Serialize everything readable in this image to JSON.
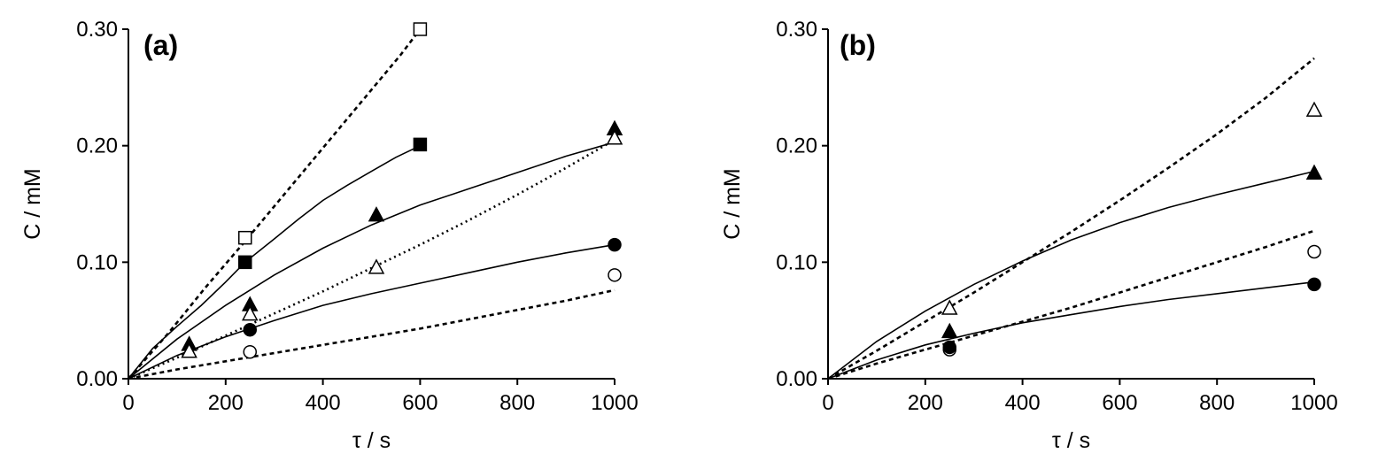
{
  "chart_data": [
    {
      "type": "scatter",
      "panel": "(a)",
      "xlabel": "τ / s",
      "ylabel": "C / mM",
      "xlim": [
        0,
        1000
      ],
      "ylim": [
        0,
        0.3
      ],
      "xticks": [
        "0",
        "200",
        "400",
        "600",
        "800",
        "1000"
      ],
      "yticks": [
        "0.00",
        "0.10",
        "0.20",
        "0.30"
      ],
      "grid": false,
      "series": [
        {
          "marker": "square-open",
          "x": [
            240,
            600
          ],
          "y": [
            0.121,
            0.3
          ]
        },
        {
          "marker": "square-filled",
          "x": [
            240,
            600
          ],
          "y": [
            0.1,
            0.201
          ]
        },
        {
          "marker": "triangle-filled",
          "x": [
            125,
            250,
            510,
            1000
          ],
          "y": [
            0.029,
            0.063,
            0.14,
            0.214
          ]
        },
        {
          "marker": "triangle-open",
          "x": [
            125,
            250,
            510,
            1000
          ],
          "y": [
            0.023,
            0.055,
            0.095,
            0.206
          ]
        },
        {
          "marker": "circle-filled",
          "x": [
            250,
            1000
          ],
          "y": [
            0.042,
            0.115
          ]
        },
        {
          "marker": "circle-open",
          "x": [
            250,
            1000
          ],
          "y": [
            0.023,
            0.089
          ]
        }
      ],
      "curves": [
        {
          "style": "dashed",
          "x": [
            0,
            80,
            160,
            240,
            320,
            400,
            480,
            560,
            600
          ],
          "y": [
            0,
            0.038,
            0.079,
            0.118,
            0.158,
            0.198,
            0.238,
            0.278,
            0.3
          ]
        },
        {
          "style": "solid",
          "x": [
            0,
            50,
            100,
            150,
            200,
            240,
            300,
            350,
            400,
            450,
            500,
            550,
            600
          ],
          "y": [
            0,
            0.026,
            0.045,
            0.063,
            0.083,
            0.1,
            0.12,
            0.137,
            0.153,
            0.166,
            0.178,
            0.19,
            0.2
          ]
        },
        {
          "style": "solid",
          "x": [
            0,
            100,
            200,
            300,
            400,
            500,
            600,
            700,
            800,
            900,
            1000
          ],
          "y": [
            0,
            0.034,
            0.063,
            0.089,
            0.112,
            0.132,
            0.149,
            0.163,
            0.177,
            0.191,
            0.203
          ]
        },
        {
          "style": "dotted",
          "x": [
            0,
            100,
            200,
            300,
            400,
            500,
            600,
            700,
            800,
            900,
            1000
          ],
          "y": [
            0,
            0.018,
            0.037,
            0.056,
            0.075,
            0.095,
            0.115,
            0.136,
            0.158,
            0.181,
            0.205
          ]
        },
        {
          "style": "solid",
          "x": [
            0,
            100,
            200,
            300,
            400,
            500,
            600,
            700,
            800,
            900,
            1000
          ],
          "y": [
            0,
            0.02,
            0.036,
            0.05,
            0.063,
            0.073,
            0.082,
            0.091,
            0.1,
            0.108,
            0.115
          ]
        },
        {
          "style": "dashed",
          "x": [
            0,
            100,
            200,
            300,
            400,
            500,
            600,
            700,
            800,
            900,
            1000
          ],
          "y": [
            0,
            0.008,
            0.015,
            0.022,
            0.029,
            0.036,
            0.043,
            0.051,
            0.059,
            0.067,
            0.076
          ]
        }
      ]
    },
    {
      "type": "scatter",
      "panel": "(b)",
      "xlabel": "τ / s",
      "ylabel": "C / mM",
      "xlim": [
        0,
        1000
      ],
      "ylim": [
        0,
        0.3
      ],
      "xticks": [
        "0",
        "200",
        "400",
        "600",
        "800",
        "1000"
      ],
      "yticks": [
        "0.00",
        "0.10",
        "0.20",
        "0.30"
      ],
      "grid": false,
      "series": [
        {
          "marker": "triangle-open",
          "x": [
            250,
            1000
          ],
          "y": [
            0.06,
            0.23
          ]
        },
        {
          "marker": "triangle-filled",
          "x": [
            250,
            1000
          ],
          "y": [
            0.04,
            0.176
          ]
        },
        {
          "marker": "circle-open",
          "x": [
            250,
            1000
          ],
          "y": [
            0.025,
            0.109
          ]
        },
        {
          "marker": "circle-filled",
          "x": [
            250,
            1000
          ],
          "y": [
            0.027,
            0.081
          ]
        }
      ],
      "curves": [
        {
          "style": "dashed",
          "x": [
            0,
            100,
            200,
            300,
            400,
            500,
            600,
            700,
            800,
            900,
            1000
          ],
          "y": [
            0,
            0.024,
            0.049,
            0.074,
            0.1,
            0.126,
            0.153,
            0.181,
            0.21,
            0.241,
            0.275
          ]
        },
        {
          "style": "solid",
          "x": [
            0,
            100,
            200,
            300,
            400,
            500,
            600,
            700,
            800,
            900,
            1000
          ],
          "y": [
            0,
            0.032,
            0.058,
            0.081,
            0.101,
            0.119,
            0.134,
            0.147,
            0.158,
            0.168,
            0.178
          ]
        },
        {
          "style": "dashed",
          "x": [
            0,
            100,
            200,
            300,
            400,
            500,
            600,
            700,
            800,
            900,
            1000
          ],
          "y": [
            0,
            0.013,
            0.025,
            0.037,
            0.049,
            0.061,
            0.074,
            0.087,
            0.1,
            0.113,
            0.127
          ]
        },
        {
          "style": "solid",
          "x": [
            0,
            100,
            200,
            300,
            400,
            500,
            600,
            700,
            800,
            900,
            1000
          ],
          "y": [
            0,
            0.016,
            0.029,
            0.039,
            0.048,
            0.055,
            0.062,
            0.068,
            0.073,
            0.078,
            0.083
          ]
        }
      ]
    }
  ]
}
